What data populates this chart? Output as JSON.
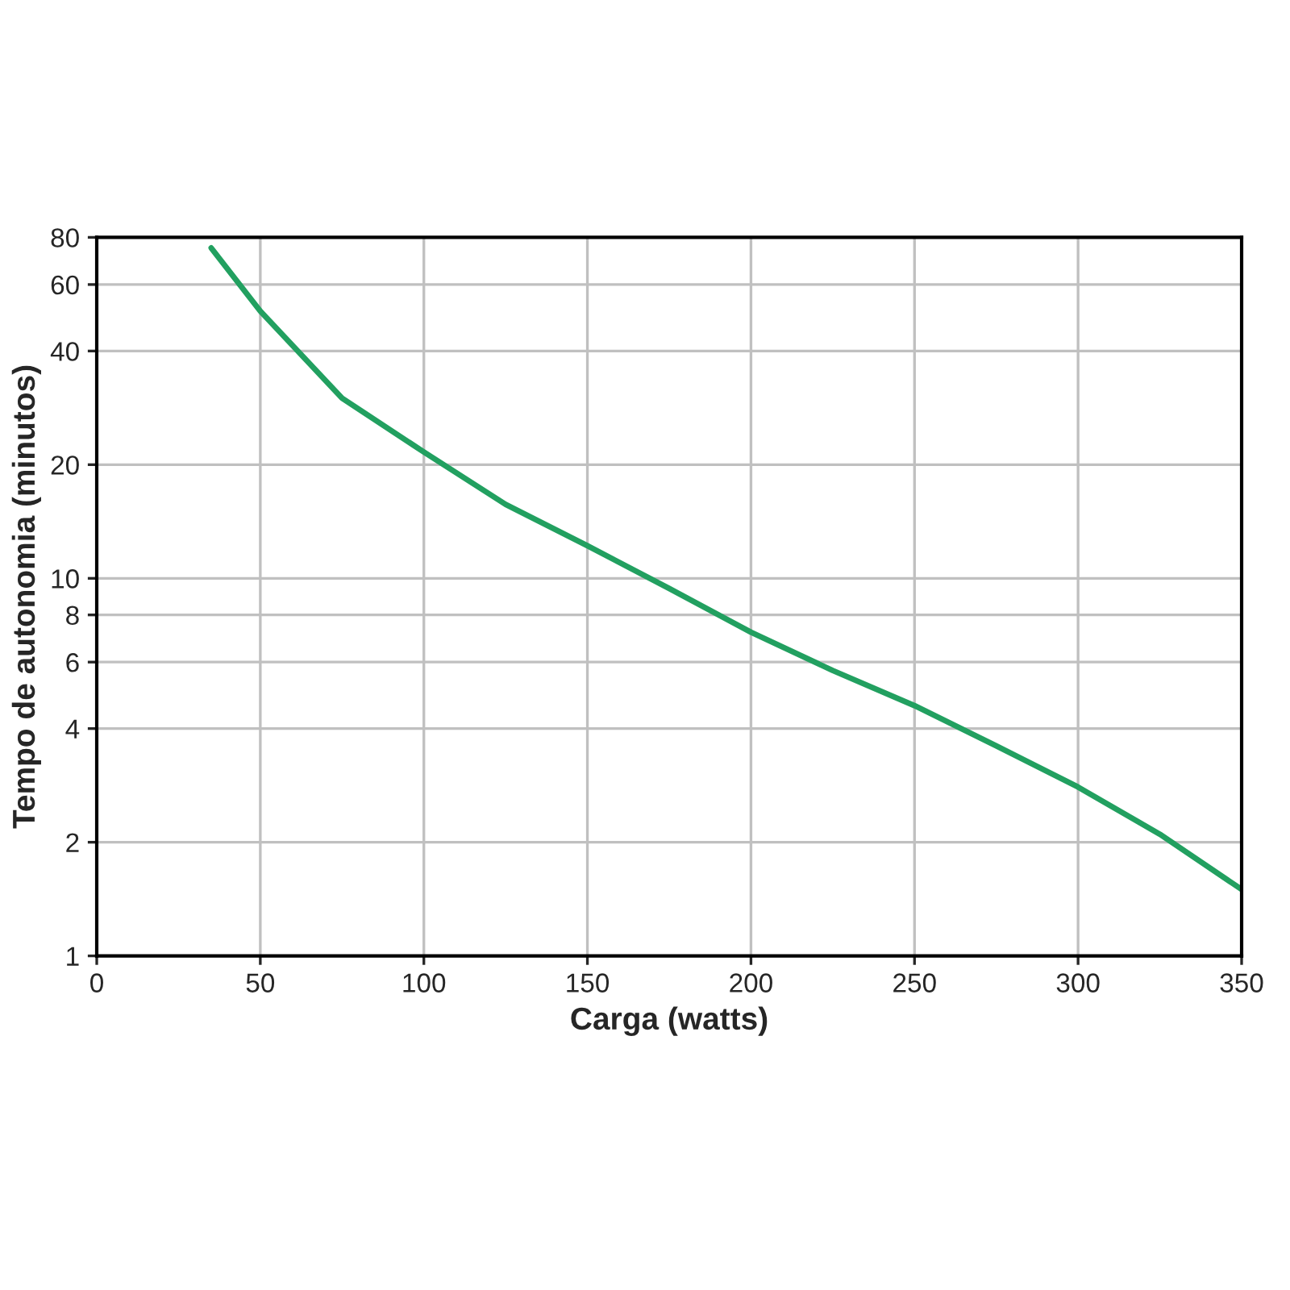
{
  "chart_data": {
    "type": "line",
    "xlabel": "Carga (watts)",
    "ylabel": "Tempo de autonomia (minutos)",
    "log": "y",
    "grid": true,
    "legend": false,
    "marker": "none",
    "line_style": "solid",
    "x": [
      35,
      50,
      75,
      100,
      125,
      150,
      175,
      200,
      225,
      250,
      275,
      300,
      325,
      350
    ],
    "series": [
      {
        "color": "#22a060",
        "values": [
          75,
          51,
          30,
          21.6,
          15.7,
          12.2,
          9.4,
          7.2,
          5.7,
          4.6,
          3.6,
          2.8,
          2.1,
          1.5
        ]
      }
    ],
    "xlim": [
      0,
      350
    ],
    "xticks": [
      0,
      50,
      100,
      150,
      200,
      250,
      300,
      350
    ],
    "ylim": [
      1,
      80
    ],
    "yticks": [
      1,
      2,
      4,
      6,
      8,
      10,
      20,
      40,
      60,
      80
    ]
  }
}
